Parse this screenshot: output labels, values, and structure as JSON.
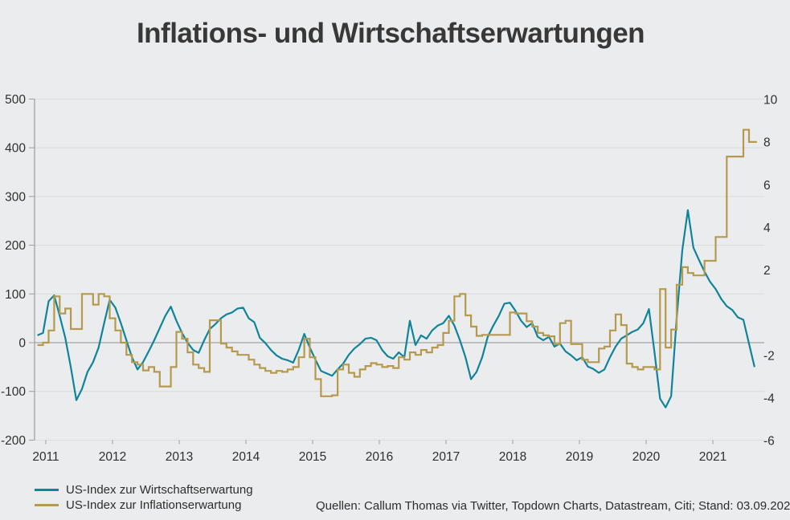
{
  "title": "Inflations- und Wirtschaftserwartungen",
  "legend": {
    "items": [
      {
        "label": "US-Index zur Wirtschaftserwartung",
        "color": "#10849a"
      },
      {
        "label": "US-Index zur Inflationserwartung",
        "color": "#b59a4e"
      }
    ]
  },
  "source_note": "Quellen: Callum Thomas via Twitter, Topdown Charts, Datastream, Citi; Stand: 03.09.202",
  "colors": {
    "background": "#ebeced",
    "grid": "#d9dada",
    "zero_line": "#a2a3a3",
    "axis": "#9c9d9d",
    "tick_text": "#2f2f2f",
    "economic": "#10849a",
    "inflation": "#b59a4e"
  },
  "chart_data": {
    "type": "line",
    "title": "Inflations- und Wirtschaftserwartungen",
    "x_axis": {
      "ticks": [
        2011,
        2012,
        2013,
        2014,
        2015,
        2016,
        2017,
        2018,
        2019,
        2020,
        2021
      ],
      "range": [
        2010.83,
        2021.77
      ]
    },
    "left_axis": {
      "ticks": [
        500,
        400,
        300,
        200,
        100,
        0,
        -100,
        -200
      ],
      "range": [
        -200,
        500
      ]
    },
    "right_axis": {
      "ticks": [
        10,
        8,
        6,
        4,
        2,
        -2,
        -4,
        -6
      ],
      "range": [
        -6,
        10
      ]
    },
    "grid": true,
    "legend_position": "bottom-left",
    "series": [
      {
        "name": "US-Index zur Wirtschaftserwartung",
        "color": "#10849a",
        "axis": "left",
        "style": "line",
        "start": 2010.875,
        "interval_months": 1,
        "values": [
          15,
          20,
          85,
          97,
          55,
          10,
          -50,
          -118,
          -95,
          -60,
          -40,
          -10,
          40,
          88,
          72,
          40,
          5,
          -30,
          -55,
          -40,
          -18,
          5,
          30,
          55,
          74,
          45,
          20,
          0,
          -15,
          -21,
          5,
          28,
          38,
          50,
          58,
          62,
          70,
          72,
          50,
          42,
          10,
          -1,
          -15,
          -26,
          -33,
          -36,
          -41,
          -15,
          18,
          -10,
          -35,
          -58,
          -63,
          -68,
          -55,
          -43,
          -25,
          -12,
          -3,
          8,
          10,
          5,
          -15,
          -28,
          -33,
          -20,
          -30,
          45,
          -5,
          15,
          8,
          25,
          35,
          40,
          55,
          35,
          5,
          -30,
          -75,
          -60,
          -30,
          12,
          35,
          55,
          80,
          82,
          65,
          45,
          32,
          40,
          12,
          5,
          12,
          -8,
          -2,
          -18,
          -26,
          -36,
          -30,
          -49,
          -54,
          -62,
          -55,
          -30,
          -8,
          8,
          15,
          22,
          27,
          40,
          69,
          -20,
          -115,
          -133,
          -110,
          50,
          190,
          272,
          195,
          170,
          146,
          125,
          110,
          90,
          75,
          67,
          52,
          47,
          -2,
          -50
        ]
      },
      {
        "name": "US-Index zur Inflationserwartung",
        "color": "#b59a4e",
        "axis": "left",
        "style": "step",
        "start": 2010.875,
        "interval_months": 1,
        "values": [
          -5,
          0,
          25,
          95,
          60,
          70,
          28,
          28,
          100,
          100,
          78,
          100,
          95,
          50,
          25,
          0,
          -25,
          -40,
          -45,
          -57,
          -50,
          -60,
          -90,
          -90,
          -50,
          22,
          8,
          -20,
          -45,
          -52,
          -60,
          46,
          46,
          -2,
          -10,
          -18,
          -25,
          -25,
          -35,
          -45,
          -52,
          -58,
          -62,
          -58,
          -60,
          -55,
          -50,
          -30,
          8,
          -30,
          -75,
          -110,
          -110,
          -108,
          -55,
          -45,
          -62,
          -70,
          -55,
          -48,
          -42,
          -45,
          -50,
          -48,
          -52,
          -30,
          -35,
          -20,
          -25,
          -15,
          -20,
          -10,
          -5,
          20,
          45,
          95,
          100,
          56,
          33,
          14,
          16,
          16,
          16,
          16,
          16,
          62,
          60,
          60,
          44,
          33,
          20,
          15,
          13,
          -3,
          40,
          45,
          -3,
          -3,
          -35,
          -40,
          -40,
          -12,
          -8,
          25,
          58,
          36,
          -43,
          -50,
          -55,
          -50,
          -50,
          -55,
          110,
          -10,
          27,
          119,
          155,
          143,
          138,
          138,
          168,
          168,
          217,
          217,
          382,
          382,
          382,
          437,
          412,
          412
        ]
      }
    ]
  }
}
